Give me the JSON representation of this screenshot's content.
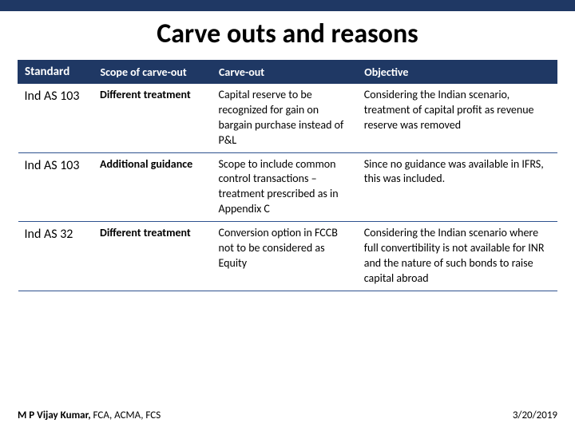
{
  "title": "Carve outs and reasons",
  "table": {
    "headers": [
      "Standard",
      "Scope of carve-out",
      "Carve-out",
      "Objective"
    ],
    "rows": [
      {
        "standard": "Ind AS 103",
        "scope": "Different treatment",
        "carve": "Capital reserve to be recognized for gain on bargain purchase instead of P&L",
        "objective": "Considering the Indian scenario, treatment of capital profit as revenue reserve was removed"
      },
      {
        "standard": "Ind AS 103",
        "scope": "Additional guidance",
        "carve": "Scope to include common control transactions – treatment prescribed as in Appendix C",
        "objective": "Since no guidance was available in IFRS, this was included."
      },
      {
        "standard": "Ind AS 32",
        "scope": "Different treatment",
        "carve": "Conversion option in FCCB not to be considered as Equity",
        "objective": "Considering the Indian scenario where full convertibility is not available for INR and the nature of such bonds to raise capital abroad"
      }
    ]
  },
  "footer": {
    "author_bold": "M P Vijay Kumar,",
    "author_rest": " FCA, ACMA, FCS",
    "date": "3/20/2019"
  },
  "colors": {
    "header_bg": "#1f3864",
    "text": "#000000",
    "border": "#2e528f"
  }
}
